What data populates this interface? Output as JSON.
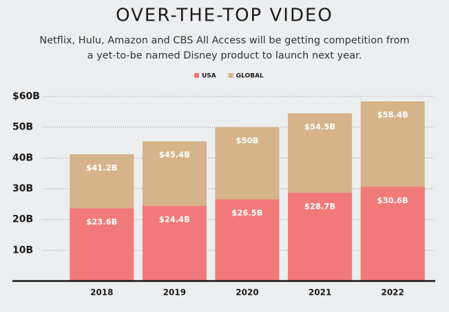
{
  "chart_data": {
    "type": "bar",
    "title": "OVER-THE-TOP VIDEO",
    "subtitle": [
      "Netflix, Hulu, Amazon and CBS All Access will be getting competition from",
      "a yet-to-be named Disney product to launch next year."
    ],
    "categories": [
      "2018",
      "2019",
      "2020",
      "2021",
      "2022"
    ],
    "series": [
      {
        "name": "USA",
        "color": "#f07a79",
        "values": [
          23.6,
          24.4,
          26.5,
          28.7,
          30.6
        ],
        "value_labels": [
          "$23.6B",
          "$24.4B",
          "$26.5B",
          "$28.7B",
          "$30.6B"
        ]
      },
      {
        "name": "GLOBAL",
        "color": "#d6b38a",
        "values": [
          41.2,
          45.4,
          50,
          54.5,
          58.4
        ],
        "value_labels": [
          "$41.2B",
          "$45.4B",
          "$50B",
          "$54.5B",
          "$58.4B"
        ]
      }
    ],
    "ylim": [
      0,
      60
    ],
    "yticks": [
      {
        "value": 10,
        "label": "10B"
      },
      {
        "value": 20,
        "label": "20B"
      },
      {
        "value": 30,
        "label": "30B"
      },
      {
        "value": 40,
        "label": "40B"
      },
      {
        "value": 50,
        "label": "50B"
      },
      {
        "value": 60,
        "label": "$60B"
      }
    ],
    "grid": true
  }
}
